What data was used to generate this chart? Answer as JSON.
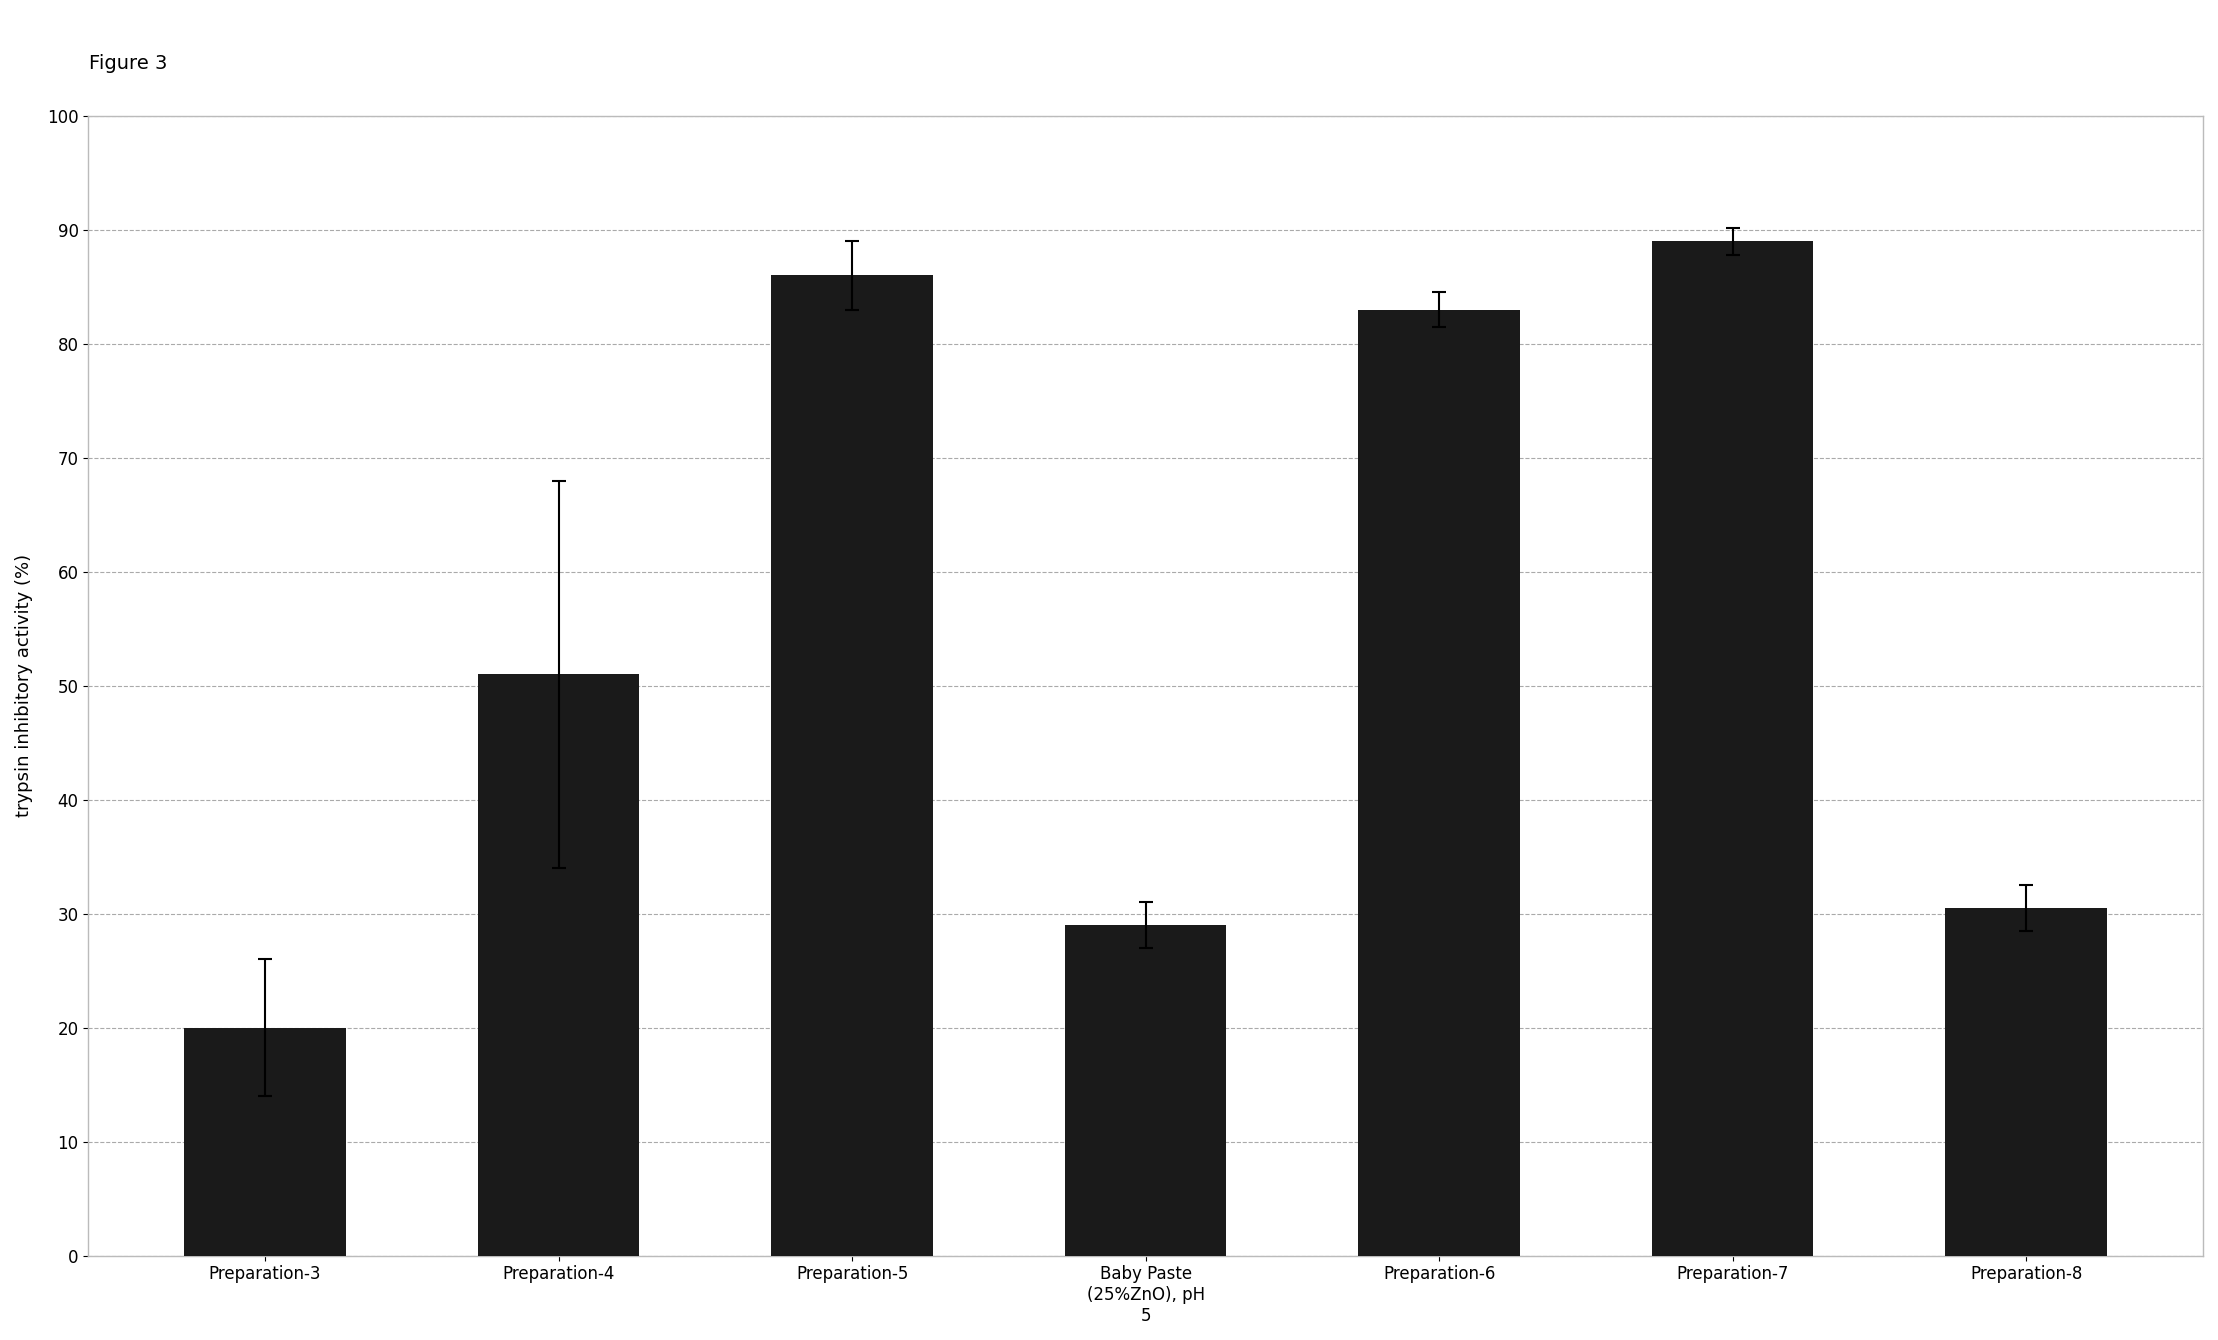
{
  "categories": [
    "Preparation-3",
    "Preparation-4",
    "Preparation-5",
    "Baby Paste\n(25%ZnO), pH\n5",
    "Preparation-6",
    "Preparation-7",
    "Preparation-8"
  ],
  "values": [
    20,
    51,
    86,
    29,
    83,
    89,
    30.5
  ],
  "errors": [
    6,
    17,
    3,
    2,
    1.5,
    1.2,
    2
  ],
  "bar_color": "#1a1a1a",
  "ylabel": "trypsin inhibitory activity (%)",
  "ylim": [
    0,
    100
  ],
  "yticks": [
    0,
    10,
    20,
    30,
    40,
    50,
    60,
    70,
    80,
    90,
    100
  ],
  "figure_label": "Figure 3",
  "background_color": "#ffffff",
  "plot_bg_color": "#ffffff",
  "grid_color": "#aaaaaa",
  "bar_width": 0.55,
  "title_fontsize": 14,
  "label_fontsize": 13,
  "tick_fontsize": 12
}
